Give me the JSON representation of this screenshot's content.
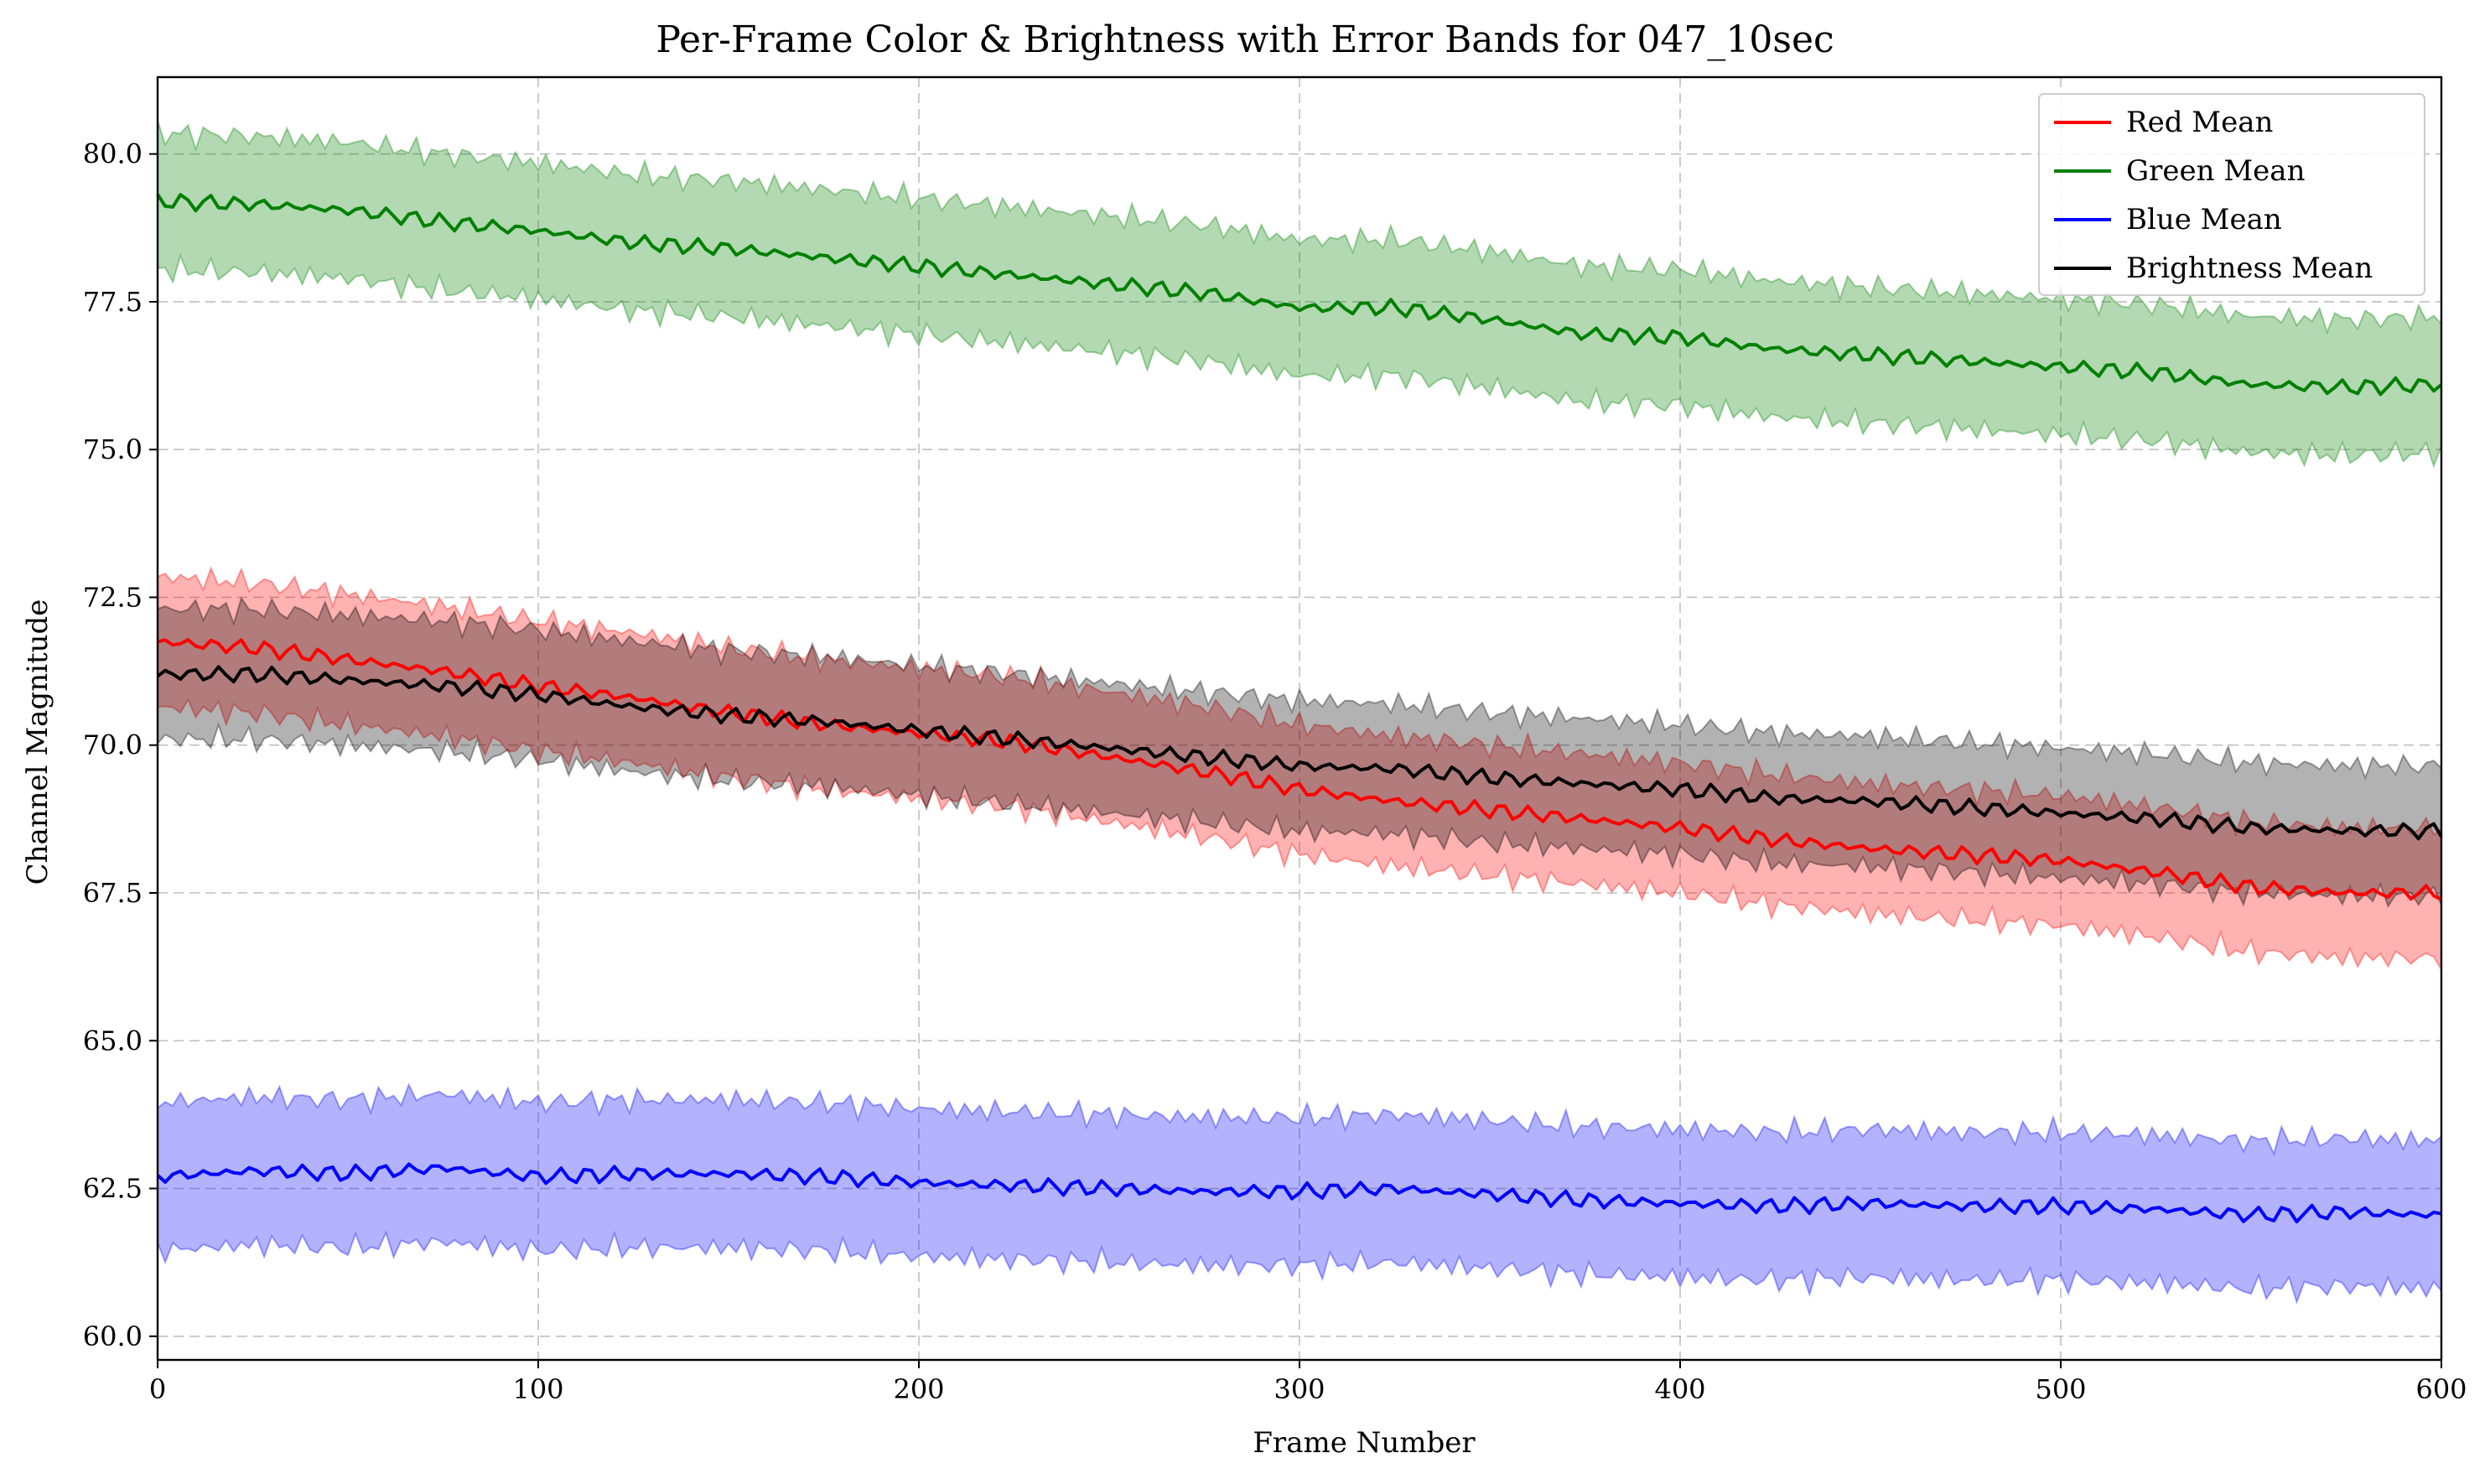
{
  "chart_data": {
    "type": "line",
    "title": "Per-Frame Color & Brightness with Error Bands for 047_10sec",
    "xlabel": "Frame Number",
    "ylabel": "Channel Magnitude",
    "xlim": [
      0,
      600
    ],
    "ylim": [
      59.6,
      81.3
    ],
    "xticks": [
      "0",
      "100",
      "200",
      "300",
      "400",
      "500",
      "600"
    ],
    "yticks": [
      "60.0",
      "62.5",
      "65.0",
      "67.5",
      "70.0",
      "72.5",
      "75.0",
      "77.5",
      "80.0"
    ],
    "grid": true,
    "legend_position": "top-right",
    "series": [
      {
        "name": "Red Mean",
        "color": "#ff0000",
        "band_color": "#ff0000",
        "x": [
          0,
          25,
          50,
          75,
          100,
          125,
          150,
          175,
          200,
          225,
          250,
          275,
          300,
          325,
          350,
          375,
          400,
          425,
          450,
          475,
          500,
          525,
          550,
          575,
          600
        ],
        "mean": [
          71.75,
          71.65,
          71.45,
          71.25,
          71.0,
          70.8,
          70.55,
          70.35,
          70.2,
          70.05,
          69.8,
          69.55,
          69.25,
          69.05,
          68.9,
          68.75,
          68.6,
          68.4,
          68.25,
          68.15,
          68.05,
          67.85,
          67.6,
          67.5,
          67.5
        ],
        "band": 1.1
      },
      {
        "name": "Green Mean",
        "color": "#008000",
        "band_color": "#008000",
        "x": [
          0,
          25,
          50,
          75,
          100,
          125,
          150,
          175,
          200,
          225,
          250,
          275,
          300,
          325,
          350,
          375,
          400,
          425,
          450,
          475,
          500,
          525,
          550,
          575,
          600
        ],
        "mean": [
          79.2,
          79.15,
          79.05,
          78.85,
          78.7,
          78.5,
          78.4,
          78.25,
          78.1,
          77.95,
          77.8,
          77.65,
          77.4,
          77.4,
          77.2,
          76.95,
          76.9,
          76.7,
          76.6,
          76.5,
          76.4,
          76.3,
          76.1,
          76.05,
          76.1
        ],
        "band": 1.15
      },
      {
        "name": "Blue Mean",
        "color": "#0000ff",
        "band_color": "#0000ff",
        "x": [
          0,
          25,
          50,
          75,
          100,
          125,
          150,
          175,
          200,
          225,
          250,
          275,
          300,
          325,
          350,
          375,
          400,
          425,
          450,
          475,
          500,
          525,
          550,
          575,
          600
        ],
        "mean": [
          62.7,
          62.8,
          62.75,
          62.85,
          62.7,
          62.75,
          62.75,
          62.7,
          62.6,
          62.55,
          62.5,
          62.45,
          62.45,
          62.5,
          62.4,
          62.3,
          62.25,
          62.2,
          62.25,
          62.2,
          62.2,
          62.15,
          62.05,
          62.1,
          62.05
        ],
        "band": 1.25
      },
      {
        "name": "Brightness Mean",
        "color": "#000000",
        "band_color": "#000000",
        "x": [
          0,
          25,
          50,
          75,
          100,
          125,
          150,
          175,
          200,
          225,
          250,
          275,
          300,
          325,
          350,
          375,
          400,
          425,
          450,
          475,
          500,
          525,
          550,
          575,
          600
        ],
        "mean": [
          71.2,
          71.2,
          71.1,
          71.0,
          70.85,
          70.65,
          70.5,
          70.4,
          70.25,
          70.1,
          69.95,
          69.8,
          69.65,
          69.6,
          69.45,
          69.35,
          69.25,
          69.1,
          69.05,
          68.95,
          68.85,
          68.75,
          68.6,
          68.55,
          68.55
        ],
        "band": 1.1
      }
    ]
  }
}
